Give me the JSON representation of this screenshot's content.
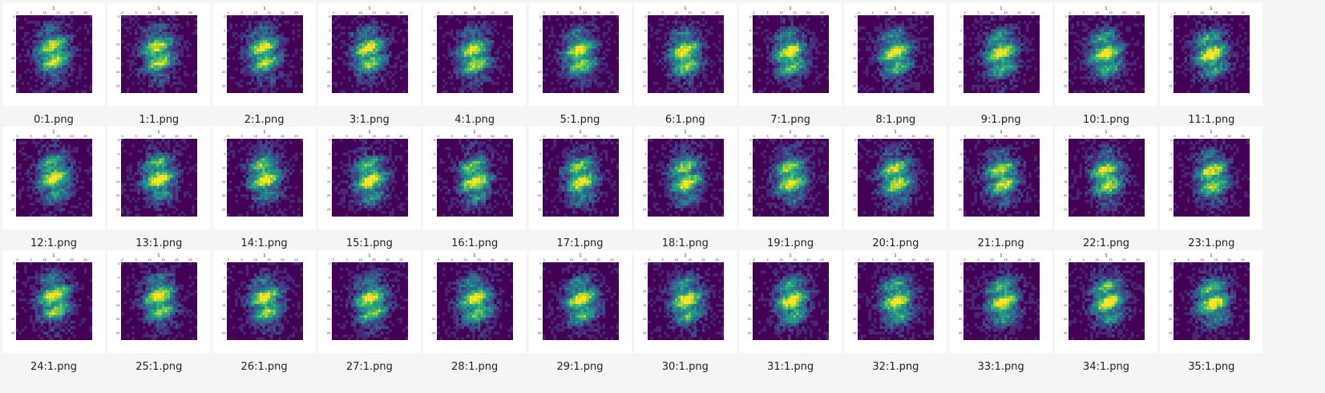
{
  "gallery": {
    "plot_title": "1",
    "x_ticks": [
      "0",
      "5",
      "10",
      "15",
      "20",
      "25"
    ],
    "y_ticks": [
      "0",
      "5",
      "10",
      "15",
      "20",
      "25"
    ],
    "colormap": [
      "#440154",
      "#482878",
      "#3e4989",
      "#31688e",
      "#26828e",
      "#1f9e89",
      "#35b779",
      "#6ece58",
      "#b5de2b",
      "#fde725"
    ],
    "items": [
      {
        "filename": "0:1.png"
      },
      {
        "filename": "1:1.png"
      },
      {
        "filename": "2:1.png"
      },
      {
        "filename": "3:1.png"
      },
      {
        "filename": "4:1.png"
      },
      {
        "filename": "5:1.png"
      },
      {
        "filename": "6:1.png"
      },
      {
        "filename": "7:1.png"
      },
      {
        "filename": "8:1.png"
      },
      {
        "filename": "9:1.png"
      },
      {
        "filename": "10:1.png"
      },
      {
        "filename": "11:1.png"
      },
      {
        "filename": "12:1.png"
      },
      {
        "filename": "13:1.png"
      },
      {
        "filename": "14:1.png"
      },
      {
        "filename": "15:1.png"
      },
      {
        "filename": "16:1.png"
      },
      {
        "filename": "17:1.png"
      },
      {
        "filename": "18:1.png"
      },
      {
        "filename": "19:1.png"
      },
      {
        "filename": "20:1.png"
      },
      {
        "filename": "21:1.png"
      },
      {
        "filename": "22:1.png"
      },
      {
        "filename": "23:1.png"
      },
      {
        "filename": "24:1.png"
      },
      {
        "filename": "25:1.png"
      },
      {
        "filename": "26:1.png"
      },
      {
        "filename": "27:1.png"
      },
      {
        "filename": "28:1.png"
      },
      {
        "filename": "29:1.png"
      },
      {
        "filename": "30:1.png"
      },
      {
        "filename": "31:1.png"
      },
      {
        "filename": "32:1.png"
      },
      {
        "filename": "33:1.png"
      },
      {
        "filename": "34:1.png"
      },
      {
        "filename": "35:1.png"
      }
    ]
  }
}
